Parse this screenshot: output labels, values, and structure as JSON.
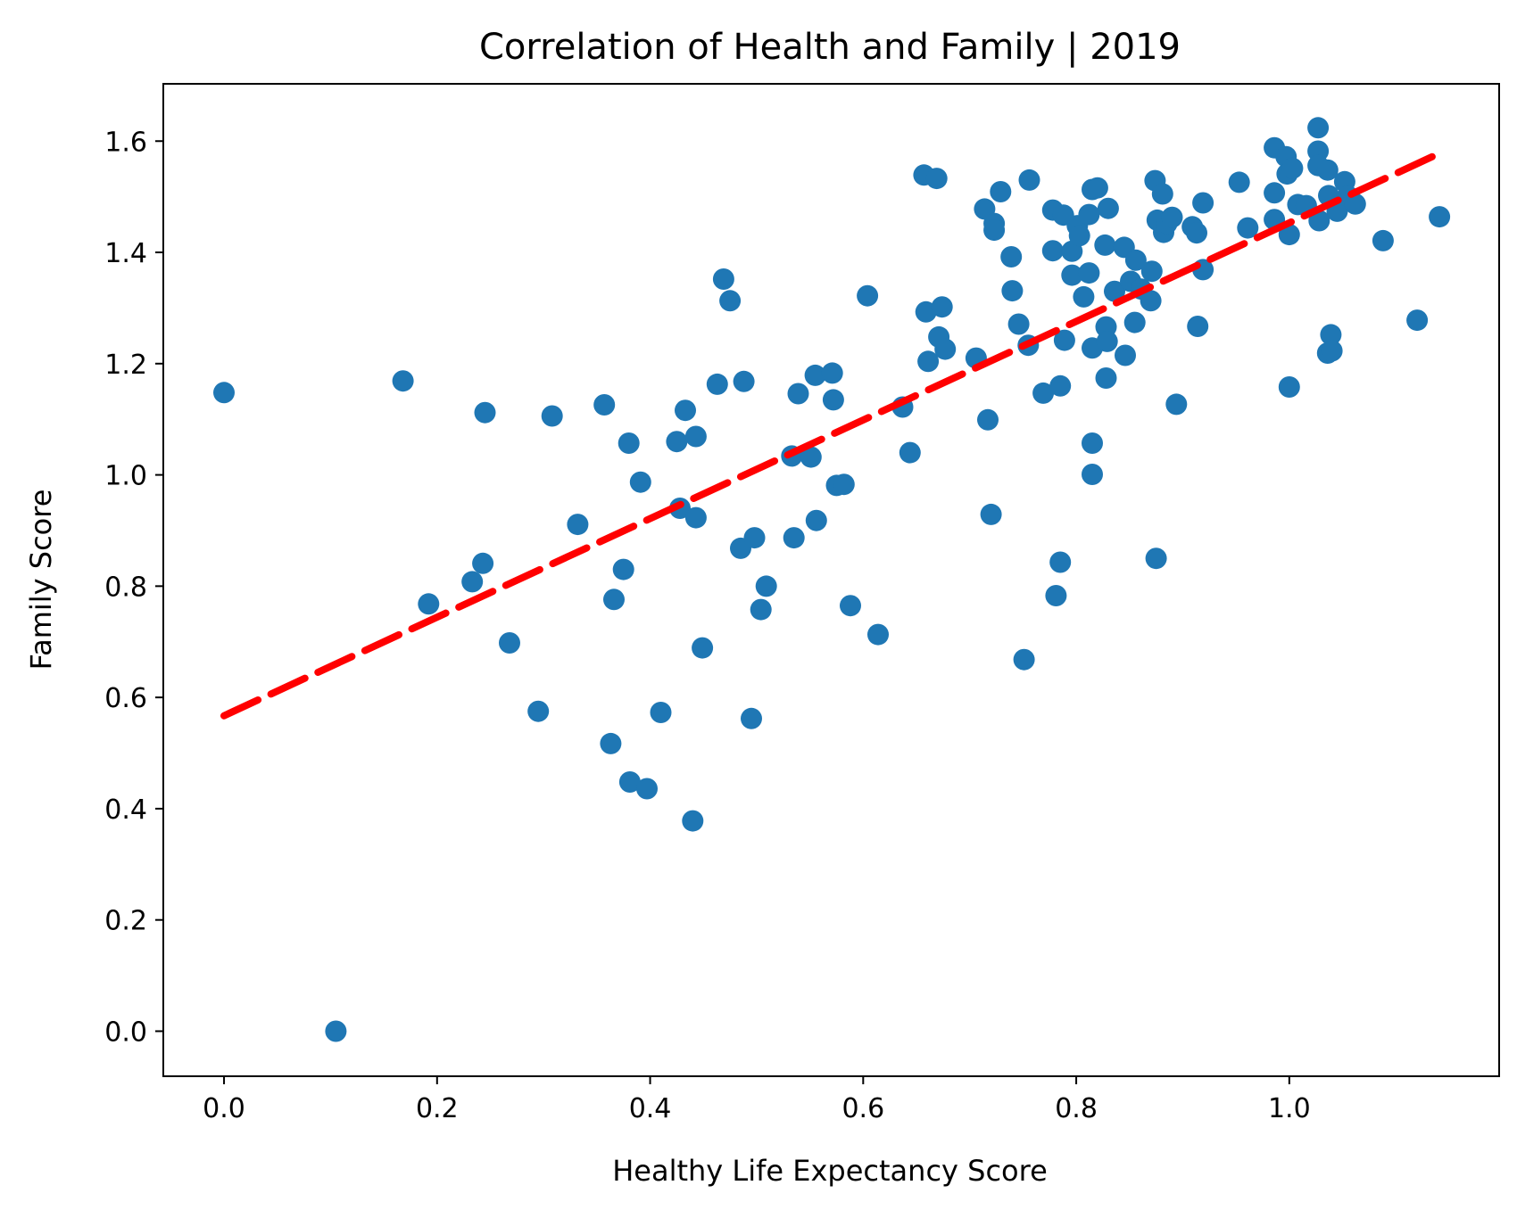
{
  "chart_data": {
    "type": "scatter",
    "title": "Correlation of Health and Family | 2019",
    "xlabel": "Healthy Life Expectancy Score",
    "ylabel": "Family Score",
    "xlim": [
      -0.057,
      1.197
    ],
    "ylim": [
      -0.081,
      1.703
    ],
    "xticks": [
      0.0,
      0.2,
      0.4,
      0.6,
      0.8,
      1.0
    ],
    "xtick_labels": [
      "0.0",
      "0.2",
      "0.4",
      "0.6",
      "0.8",
      "1.0"
    ],
    "yticks": [
      0.0,
      0.2,
      0.4,
      0.6,
      0.8,
      1.0,
      1.2,
      1.4,
      1.6
    ],
    "ytick_labels": [
      "0.0",
      "0.2",
      "0.4",
      "0.6",
      "0.8",
      "1.0",
      "1.2",
      "1.4",
      "1.6"
    ],
    "grid": false,
    "point_color": "#1f77b4",
    "trend_color": "#ff0000",
    "trend_line": {
      "x": [
        0.0,
        1.141
      ],
      "y": [
        0.567,
        1.578
      ]
    },
    "points": [
      [
        0.0,
        1.148
      ],
      [
        0.105,
        0.0
      ],
      [
        0.168,
        1.169
      ],
      [
        0.192,
        0.768
      ],
      [
        0.233,
        0.808
      ],
      [
        0.243,
        0.841
      ],
      [
        0.245,
        1.112
      ],
      [
        0.268,
        0.698
      ],
      [
        0.295,
        0.575
      ],
      [
        0.308,
        1.106
      ],
      [
        0.332,
        0.911
      ],
      [
        0.357,
        1.126
      ],
      [
        0.363,
        0.517
      ],
      [
        0.366,
        0.776
      ],
      [
        0.375,
        0.83
      ],
      [
        0.38,
        1.057
      ],
      [
        0.381,
        0.448
      ],
      [
        0.391,
        0.987
      ],
      [
        0.397,
        0.436
      ],
      [
        0.41,
        0.573
      ],
      [
        0.425,
        1.06
      ],
      [
        0.428,
        0.94
      ],
      [
        0.433,
        1.116
      ],
      [
        0.44,
        0.378
      ],
      [
        0.443,
        1.069
      ],
      [
        0.443,
        0.923
      ],
      [
        0.449,
        0.689
      ],
      [
        0.463,
        1.163
      ],
      [
        0.469,
        1.352
      ],
      [
        0.475,
        1.313
      ],
      [
        0.485,
        0.868
      ],
      [
        0.488,
        1.168
      ],
      [
        0.495,
        0.562
      ],
      [
        0.498,
        0.887
      ],
      [
        0.504,
        0.758
      ],
      [
        0.509,
        0.8
      ],
      [
        0.533,
        1.034
      ],
      [
        0.535,
        0.887
      ],
      [
        0.539,
        1.146
      ],
      [
        0.551,
        1.032
      ],
      [
        0.555,
        1.179
      ],
      [
        0.556,
        0.918
      ],
      [
        0.571,
        1.183
      ],
      [
        0.572,
        1.135
      ],
      [
        0.575,
        0.981
      ],
      [
        0.582,
        0.983
      ],
      [
        0.588,
        0.765
      ],
      [
        0.604,
        1.322
      ],
      [
        0.614,
        0.713
      ],
      [
        0.637,
        1.122
      ],
      [
        0.644,
        1.04
      ],
      [
        0.657,
        1.539
      ],
      [
        0.659,
        1.293
      ],
      [
        0.661,
        1.204
      ],
      [
        0.669,
        1.533
      ],
      [
        0.671,
        1.248
      ],
      [
        0.674,
        1.302
      ],
      [
        0.677,
        1.226
      ],
      [
        0.706,
        1.21
      ],
      [
        0.714,
        1.478
      ],
      [
        0.717,
        1.099
      ],
      [
        0.72,
        0.929
      ],
      [
        0.723,
        1.452
      ],
      [
        0.723,
        1.44
      ],
      [
        0.729,
        1.509
      ],
      [
        0.739,
        1.392
      ],
      [
        0.74,
        1.331
      ],
      [
        0.746,
        1.271
      ],
      [
        0.751,
        0.668
      ],
      [
        0.755,
        1.233
      ],
      [
        0.756,
        1.53
      ],
      [
        0.769,
        1.147
      ],
      [
        0.778,
        1.403
      ],
      [
        0.778,
        1.476
      ],
      [
        0.781,
        0.783
      ],
      [
        0.785,
        1.16
      ],
      [
        0.785,
        0.843
      ],
      [
        0.788,
        1.467
      ],
      [
        0.789,
        1.242
      ],
      [
        0.796,
        1.359
      ],
      [
        0.796,
        1.402
      ],
      [
        0.801,
        1.448
      ],
      [
        0.803,
        1.43
      ],
      [
        0.807,
        1.32
      ],
      [
        0.812,
        1.363
      ],
      [
        0.812,
        1.468
      ],
      [
        0.815,
        1.228
      ],
      [
        0.815,
        1.513
      ],
      [
        0.815,
        1.057
      ],
      [
        0.815,
        1.001
      ],
      [
        0.82,
        1.516
      ],
      [
        0.827,
        1.413
      ],
      [
        0.828,
        1.174
      ],
      [
        0.828,
        1.266
      ],
      [
        0.829,
        1.24
      ],
      [
        0.83,
        1.479
      ],
      [
        0.836,
        1.33
      ],
      [
        0.845,
        1.409
      ],
      [
        0.846,
        1.215
      ],
      [
        0.851,
        1.348
      ],
      [
        0.855,
        1.274
      ],
      [
        0.856,
        1.386
      ],
      [
        0.861,
        1.334
      ],
      [
        0.87,
        1.313
      ],
      [
        0.871,
        1.366
      ],
      [
        0.874,
        1.529
      ],
      [
        0.875,
        0.85
      ],
      [
        0.876,
        1.458
      ],
      [
        0.881,
        1.505
      ],
      [
        0.882,
        1.436
      ],
      [
        0.885,
        1.452
      ],
      [
        0.89,
        1.463
      ],
      [
        0.894,
        1.127
      ],
      [
        0.909,
        1.446
      ],
      [
        0.913,
        1.435
      ],
      [
        0.914,
        1.267
      ],
      [
        0.919,
        1.489
      ],
      [
        0.919,
        1.369
      ],
      [
        0.953,
        1.526
      ],
      [
        0.961,
        1.444
      ],
      [
        0.986,
        1.588
      ],
      [
        0.986,
        1.507
      ],
      [
        0.986,
        1.459
      ],
      [
        0.997,
        1.572
      ],
      [
        0.998,
        1.541
      ],
      [
        1.0,
        1.432
      ],
      [
        1.0,
        1.158
      ],
      [
        1.003,
        1.551
      ],
      [
        1.008,
        1.486
      ],
      [
        1.016,
        1.484
      ],
      [
        1.027,
        1.624
      ],
      [
        1.027,
        1.582
      ],
      [
        1.027,
        1.556
      ],
      [
        1.028,
        1.457
      ],
      [
        1.036,
        1.219
      ],
      [
        1.036,
        1.548
      ],
      [
        1.037,
        1.502
      ],
      [
        1.039,
        1.252
      ],
      [
        1.04,
        1.223
      ],
      [
        1.045,
        1.474
      ],
      [
        1.052,
        1.527
      ],
      [
        1.055,
        1.501
      ],
      [
        1.062,
        1.487
      ],
      [
        1.088,
        1.421
      ],
      [
        1.12,
        1.278
      ],
      [
        1.141,
        1.464
      ]
    ]
  }
}
